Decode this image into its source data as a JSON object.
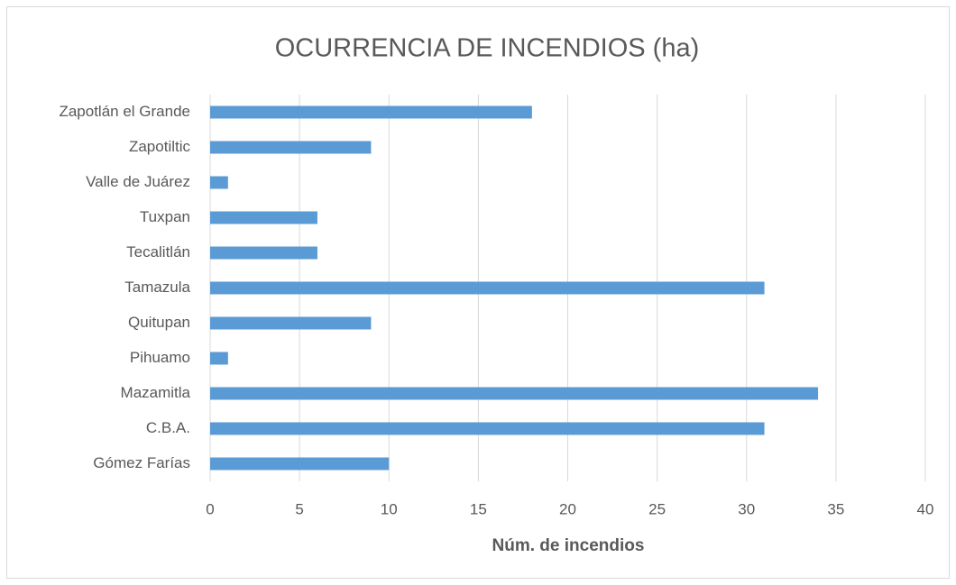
{
  "chart_data": {
    "type": "bar",
    "orientation": "horizontal",
    "title": "OCURRENCIA DE INCENDIOS (ha)",
    "x_label": "Núm. de incendios",
    "categories": [
      "Gómez Farías",
      "C.B.A.",
      "Mazamitla",
      "Pihuamo",
      "Quitupan",
      "Tamazula",
      "Tecalitlán",
      "Tuxpan",
      "Valle de Juárez",
      "Zapotiltic",
      "Zapotlán el Grande"
    ],
    "values": [
      10,
      31,
      34,
      1,
      9,
      31,
      6,
      6,
      1,
      9,
      18
    ],
    "color": "#5b9bd5",
    "xlim": [
      0,
      40
    ],
    "xticks": [
      0,
      5,
      10,
      15,
      20,
      25,
      30,
      35,
      40
    ],
    "grid": true
  }
}
